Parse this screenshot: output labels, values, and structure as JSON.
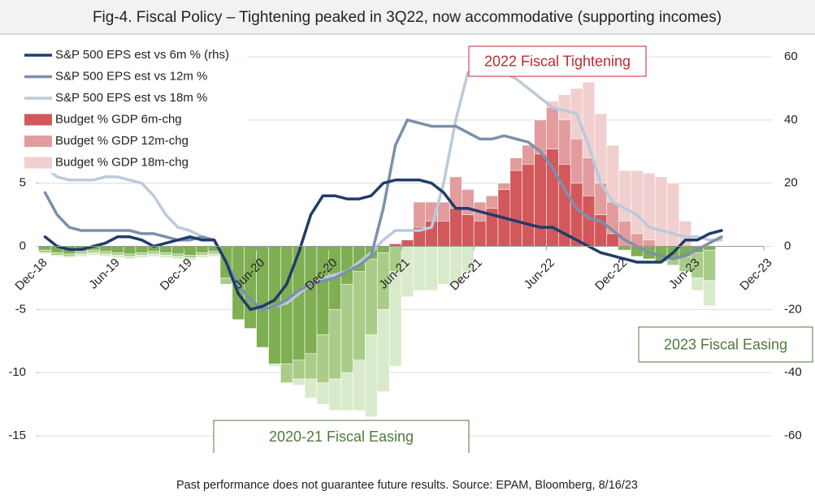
{
  "chart_data": {
    "type": "bar_line",
    "title": "Fig-4. Fiscal Policy – Tightening peaked in 3Q22, now accommodative (supporting incomes)",
    "footer": "Past performance does not guarantee future results.  Source: EPAM, Bloomberg, 8/16/23",
    "categories": [
      "Dec-18",
      null,
      null,
      null,
      null,
      null,
      "Jun-19",
      null,
      null,
      null,
      null,
      null,
      "Dec-19",
      null,
      null,
      null,
      null,
      null,
      "Jun-20",
      null,
      null,
      null,
      null,
      null,
      "Dec-20",
      null,
      null,
      null,
      null,
      null,
      "Jun-21",
      null,
      null,
      null,
      null,
      null,
      "Dec-21",
      null,
      null,
      null,
      null,
      null,
      "Jun-22",
      null,
      null,
      null,
      null,
      null,
      "Dec-22",
      null,
      null,
      null,
      null,
      null,
      "Jun-23",
      null,
      null,
      null,
      null,
      null,
      "Dec-23"
    ],
    "ylim": [
      -15,
      15
    ],
    "yticks": [
      -15,
      -10,
      -5,
      0,
      5
    ],
    "y2lim": [
      -60,
      60
    ],
    "y2ticks": [
      -60,
      -40,
      -20,
      0,
      20,
      40,
      60
    ],
    "grid": true,
    "legend": "upper left",
    "series": [
      {
        "name": "Budget % GDP 18m-chg",
        "kind": "bar",
        "color": "#f2cfcf",
        "negative_color": "#d9eaca",
        "values": [
          -0.6,
          -0.8,
          -0.9,
          -0.8,
          -0.7,
          -0.8,
          -0.9,
          -1,
          -0.9,
          -0.8,
          -0.9,
          -1,
          -1.1,
          -0.9,
          -0.8,
          -3,
          -5.5,
          -6,
          -6.5,
          -9.5,
          -10.5,
          -11,
          -12,
          -12.5,
          -13,
          -13,
          -13,
          -13.5,
          -11.5,
          -9.5,
          -4,
          -3.5,
          -3.5,
          -3,
          -3,
          -2,
          2,
          3,
          4.5,
          6,
          7.5,
          10,
          11.5,
          12,
          12.5,
          13,
          10.5,
          8,
          6,
          6,
          5.8,
          5.5,
          5,
          2,
          -3.5,
          -4.7,
          null,
          null,
          null,
          null,
          null
        ]
      },
      {
        "name": "Budget % GDP 12m-chg",
        "kind": "bar",
        "color": "#e29c9e",
        "negative_color": "#a9cd89",
        "values": [
          -0.5,
          -0.7,
          -0.8,
          -0.6,
          -0.5,
          -0.6,
          -0.7,
          -0.8,
          -0.7,
          -0.6,
          -0.7,
          -0.8,
          -0.9,
          -0.7,
          -0.6,
          -3,
          -5.5,
          -6,
          -7,
          -9,
          -10.8,
          -10.5,
          -10.5,
          -10.8,
          -10.5,
          -10,
          -9,
          -7,
          -5,
          -2,
          0.5,
          3.5,
          3.5,
          3.5,
          5.5,
          4.5,
          3.5,
          4,
          5,
          7,
          8,
          10,
          11,
          10,
          8.5,
          7,
          5,
          3.5,
          2,
          1,
          0.5,
          -1,
          -1.5,
          -2,
          -2.5,
          -2.7,
          null,
          null,
          null,
          null,
          null
        ]
      },
      {
        "name": "Budget % GDP 6m-chg",
        "kind": "bar",
        "color": "#d2585c",
        "negative_color": "#7fae53",
        "values": [
          -0.3,
          -0.5,
          -0.6,
          -0.4,
          -0.3,
          -0.4,
          -0.5,
          -0.6,
          -0.5,
          -0.4,
          -0.5,
          -0.6,
          -0.7,
          -0.5,
          -0.4,
          -2.5,
          -5.8,
          -6.5,
          -8,
          -9.3,
          -9.3,
          -9,
          -8.5,
          -7,
          -5,
          -3,
          -2,
          -1,
          -0.5,
          0.2,
          0.5,
          1.5,
          2,
          2,
          3,
          2.5,
          2,
          3,
          4.5,
          6,
          6.5,
          7.3,
          7.7,
          6.5,
          5,
          4,
          2.5,
          1,
          -0.3,
          -0.8,
          -1,
          -1.2,
          -1,
          -0.8,
          -0.5,
          -0.3,
          null,
          null,
          null,
          null,
          null
        ]
      },
      {
        "name": "S&P 500 EPS est vs 18m %",
        "kind": "line",
        "axis": "y2",
        "color": "#bccadb",
        "values": [
          25,
          22,
          21,
          21,
          21,
          22,
          22,
          21,
          20,
          16,
          10,
          6,
          5,
          3,
          2,
          -5,
          -12,
          -17,
          -20,
          -19,
          -18,
          -15,
          -12,
          -10,
          -9,
          -8,
          -5,
          -2,
          2,
          5,
          5,
          5,
          6,
          20,
          40,
          55,
          57,
          56,
          55,
          53,
          50,
          47,
          44,
          43,
          42,
          32,
          20,
          14,
          12,
          10,
          6,
          5,
          4,
          3,
          3,
          2,
          2,
          null,
          null,
          null,
          null
        ]
      },
      {
        "name": "S&P 500 EPS est vs 12m %",
        "kind": "line",
        "axis": "y2",
        "color": "#7c90ab",
        "values": [
          17,
          10,
          6,
          5,
          5,
          5,
          5,
          5,
          4,
          4,
          3,
          2,
          2,
          3,
          2,
          -5,
          -12,
          -17,
          -20,
          -19,
          -17,
          -14,
          -12,
          -11,
          -10,
          -8,
          -6,
          -3,
          12,
          32,
          40,
          39,
          38,
          38,
          38,
          36,
          34,
          34,
          35,
          34,
          33,
          30,
          25,
          18,
          12,
          9,
          8,
          5,
          2,
          0,
          -2,
          -3,
          -4,
          -3,
          -1,
          1,
          3,
          null,
          null,
          null,
          null
        ]
      },
      {
        "name": "S&P 500 EPS est vs 6m % (rhs)",
        "kind": "line",
        "axis": "y2",
        "color": "#1f3d6b",
        "values": [
          3,
          0,
          -1,
          -1,
          0,
          1,
          3,
          3,
          2,
          0,
          1,
          2,
          3,
          2,
          2,
          -5,
          -15,
          -20,
          -19,
          -17,
          -12,
          -2,
          10,
          16,
          16,
          15,
          15,
          16,
          20,
          21,
          21,
          21,
          20,
          17,
          12,
          12,
          11,
          10,
          9,
          8,
          7,
          6,
          6,
          4,
          2,
          0,
          -2,
          -3,
          -4,
          -5,
          -5,
          -5,
          -2,
          2,
          2,
          4,
          5,
          null,
          null,
          null,
          null
        ]
      }
    ],
    "annotations": [
      {
        "text": "2022 Fiscal Tightening",
        "color": "#c0282d"
      },
      {
        "text": "2023 Fiscal Easing",
        "color": "#4f7a3a"
      },
      {
        "text": "2020-21 Fiscal Easing",
        "color": "#4f7a3a"
      }
    ]
  }
}
